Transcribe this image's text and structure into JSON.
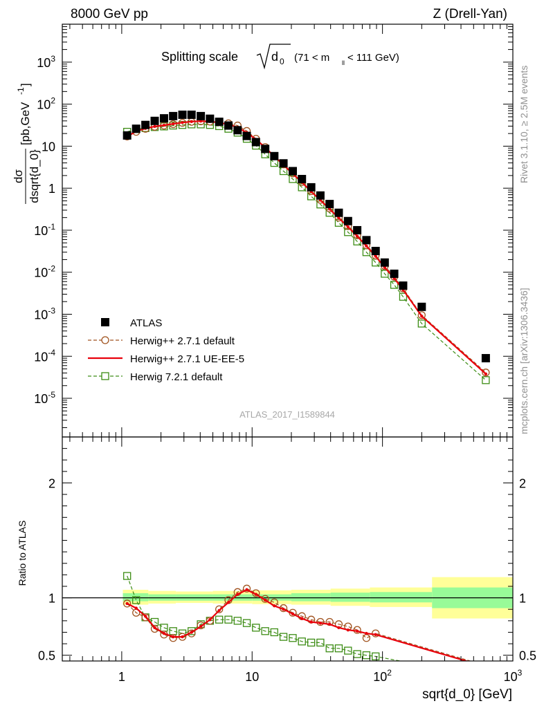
{
  "header": {
    "left": "8000 GeV pp",
    "right": "Z (Drell-Yan)"
  },
  "side": {
    "rivet": "Rivet 3.1.10, ≥ 2.5M events",
    "mcplots": "mcplots.cern.ch [arXiv:1306.3436]"
  },
  "plot_title": {
    "main": "Splitting scale",
    "sqrt_arg": "d",
    "sqrt_sub": "0",
    "range_a": "(71 < m",
    "range_sub": "ll",
    "range_b": " < 111 GeV)"
  },
  "watermark": "ATLAS_2017_I1589844",
  "ylabel_top": {
    "num": "dσ",
    "den": "dsqrt{d_0}",
    "unit_a": "[pb,GeV",
    "unit_sup": "-1",
    "unit_b": "]"
  },
  "ylabel_bottom": "Ratio to ATLAS",
  "xlabel": "sqrt{d_0} [GeV]",
  "x_ticks": [
    {
      "v": 1,
      "label": "1",
      "exp": ""
    },
    {
      "v": 10,
      "label": "10",
      "exp": ""
    },
    {
      "v": 100,
      "label": "10",
      "exp": "2"
    },
    {
      "v": 1000,
      "label": "10",
      "exp": "3"
    }
  ],
  "y_ticks_top": [
    {
      "v": 1e-05,
      "label": "10",
      "exp": "-5"
    },
    {
      "v": 0.0001,
      "label": "10",
      "exp": "-4"
    },
    {
      "v": 0.001,
      "label": "10",
      "exp": "-3"
    },
    {
      "v": 0.01,
      "label": "10",
      "exp": "-2"
    },
    {
      "v": 0.1,
      "label": "10",
      "exp": "-1"
    },
    {
      "v": 1,
      "label": "1",
      "exp": ""
    },
    {
      "v": 10,
      "label": "10",
      "exp": ""
    },
    {
      "v": 100,
      "label": "10",
      "exp": "2"
    },
    {
      "v": 1000,
      "label": "10",
      "exp": "3"
    }
  ],
  "y_ticks_bottom": [
    {
      "v": 0.5,
      "label": "0.5"
    },
    {
      "v": 1,
      "label": "1"
    },
    {
      "v": 2,
      "label": "2"
    }
  ],
  "legend": [
    {
      "label": "ATLAS",
      "style": "data"
    },
    {
      "label": "Herwig++ 2.7.1 default",
      "style": "circle"
    },
    {
      "label": "Herwig++ 2.7.1 UE-EE-5",
      "style": "solid"
    },
    {
      "label": "Herwig 7.2.1 default",
      "style": "square"
    }
  ],
  "colors": {
    "atlas": "#000000",
    "herwigpp_default": "#a0521e",
    "herwigpp_ueee5": "#e8000b",
    "herwig7": "#3c8c14",
    "band_inner": "#98fb98",
    "band_outer": "#ffff99"
  },
  "chart_data": [
    {
      "type": "scatter",
      "name": "main",
      "xscale": "log",
      "yscale": "log",
      "xlim": [
        0.35,
        1000
      ],
      "ylim": [
        1.2e-06,
        8000
      ],
      "x": [
        1.1,
        1.29,
        1.52,
        1.79,
        2.11,
        2.48,
        2.92,
        3.43,
        4.04,
        4.75,
        5.59,
        6.58,
        7.74,
        9.1,
        10.7,
        12.6,
        14.8,
        17.4,
        20.5,
        24.1,
        28.4,
        33.4,
        39.3,
        46.2,
        54.4,
        64.0,
        75.3,
        88.6,
        104,
        123,
        144,
        200,
        620
      ],
      "series": [
        {
          "name": "ATLAS",
          "values": [
            18,
            26,
            32,
            40,
            46,
            52,
            56,
            56,
            52,
            45,
            38,
            31,
            24,
            17.5,
            12.5,
            8.6,
            5.8,
            3.9,
            2.55,
            1.65,
            1.05,
            0.67,
            0.42,
            0.26,
            0.165,
            0.1,
            0.058,
            0.032,
            0.017,
            0.0092,
            0.0048,
            0.0015,
            9e-05
          ]
        },
        {
          "name": "Herwig++ 2.7.1 default",
          "values": [
            17,
            22,
            26,
            29,
            31,
            33.5,
            36,
            38,
            39,
            38.5,
            37,
            35,
            31,
            23,
            15,
            9.5,
            5.8,
            3.7,
            2.25,
            1.4,
            0.85,
            0.53,
            0.33,
            0.2,
            0.125,
            0.076,
            0.044,
            0.025,
            0.014,
            0.0078,
            0.0041,
            0.00095,
            4.1e-05
          ]
        },
        {
          "name": "Herwig++ 2.7.1 UE-EE-5",
          "values": [
            17,
            22.5,
            26.5,
            29.5,
            31.5,
            34,
            36.5,
            38.5,
            39.5,
            38.5,
            36.5,
            33,
            28,
            21,
            14.5,
            9.3,
            5.7,
            3.6,
            2.2,
            1.38,
            0.83,
            0.52,
            0.32,
            0.195,
            0.12,
            0.072,
            0.042,
            0.024,
            0.013,
            0.0072,
            0.0038,
            0.0009,
            3.8e-05
          ]
        },
        {
          "name": "Herwig 7.2.1 default",
          "values": [
            22,
            25.5,
            27,
            28.5,
            29.5,
            31,
            32,
            33,
            33,
            32,
            30,
            26,
            21,
            15,
            10.3,
            6.4,
            4.0,
            2.55,
            1.65,
            1.05,
            0.64,
            0.41,
            0.26,
            0.15,
            0.09,
            0.054,
            0.03,
            0.017,
            0.0092,
            0.005,
            0.0026,
            0.0006,
            2.7e-05
          ]
        }
      ]
    },
    {
      "type": "line",
      "name": "ratio",
      "xscale": "log",
      "xlim": [
        0.35,
        1000
      ],
      "ylim": [
        0.45,
        2.4
      ],
      "x": [
        1.1,
        1.29,
        1.52,
        1.79,
        2.11,
        2.48,
        2.92,
        3.43,
        4.04,
        4.75,
        5.59,
        6.58,
        7.74,
        9.1,
        10.7,
        12.6,
        14.8,
        17.4,
        20.5,
        24.1,
        28.4,
        33.4,
        39.3,
        46.2,
        54.4,
        64.0,
        75.3,
        88.6,
        620
      ],
      "series": [
        {
          "name": "Herwig++ 2.7.1 default",
          "values": [
            0.95,
            0.87,
            0.83,
            0.73,
            0.68,
            0.65,
            0.66,
            0.69,
            0.76,
            0.8,
            0.9,
            0.98,
            1.05,
            1.08,
            1.04,
            0.99,
            0.96,
            0.91,
            0.87,
            0.84,
            0.81,
            0.79,
            0.79,
            0.77,
            0.75,
            0.72,
            0.65,
            0.69,
            0.41
          ]
        },
        {
          "name": "Herwig++ 2.7.1 UE-EE-5",
          "values": [
            0.95,
            0.91,
            0.84,
            0.74,
            0.69,
            0.66,
            0.66,
            0.7,
            0.75,
            0.81,
            0.89,
            0.96,
            1.03,
            1.07,
            1.03,
            0.98,
            0.93,
            0.9,
            0.86,
            0.82,
            0.79,
            0.78,
            0.77,
            0.74,
            0.72,
            0.71,
            0.69,
            0.68,
            0.4
          ]
        },
        {
          "name": "Herwig 7.2.1 default",
          "values": [
            1.19,
            0.98,
            0.83,
            0.79,
            0.74,
            0.71,
            0.69,
            0.71,
            0.77,
            0.8,
            0.81,
            0.81,
            0.8,
            0.78,
            0.74,
            0.71,
            0.7,
            0.66,
            0.65,
            0.62,
            0.61,
            0.61,
            0.56,
            0.56,
            0.54,
            0.51,
            0.5,
            0.49,
            0.31
          ]
        }
      ],
      "band_edges": [
        1.02,
        1.6,
        2.6,
        5.0,
        10,
        20,
        40,
        80,
        240,
        1000
      ],
      "band_inner": [
        [
          0.97,
          1.04
        ],
        [
          0.975,
          1.03
        ],
        [
          0.975,
          1.03
        ],
        [
          0.975,
          1.03
        ],
        [
          0.975,
          1.03
        ],
        [
          0.97,
          1.04
        ],
        [
          0.965,
          1.045
        ],
        [
          0.96,
          1.05
        ],
        [
          0.91,
          1.09
        ]
      ],
      "band_outer": [
        [
          0.94,
          1.07
        ],
        [
          0.95,
          1.06
        ],
        [
          0.955,
          1.055
        ],
        [
          0.95,
          1.06
        ],
        [
          0.945,
          1.065
        ],
        [
          0.94,
          1.07
        ],
        [
          0.93,
          1.08
        ],
        [
          0.92,
          1.09
        ],
        [
          0.82,
          1.18
        ]
      ]
    }
  ]
}
